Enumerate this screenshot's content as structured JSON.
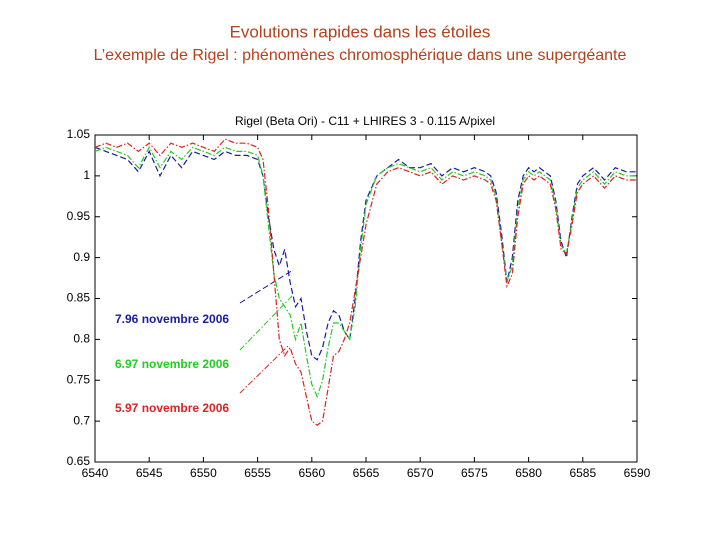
{
  "slide_title": "Evolutions rapides dans les étoiles",
  "slide_subtitle": "L’exemple de Rigel : phénomènes chromosphérique dans une supergéante",
  "chart_data": {
    "type": "line",
    "title": "Rigel (Beta Ori) - C11 + LHIRES 3 - 0.115 A/pixel",
    "x": [
      6540,
      6541,
      6542,
      6543,
      6544,
      6545,
      6546,
      6547,
      6548,
      6549,
      6550,
      6551,
      6552,
      6553,
      6554,
      6555,
      6555.5,
      6556,
      6556.5,
      6557,
      6557.5,
      6558,
      6558.5,
      6559,
      6559.5,
      6560,
      6560.5,
      6561,
      6561.5,
      6562,
      6562.5,
      6563,
      6563.5,
      6564,
      6564.5,
      6565,
      6566,
      6567,
      6568,
      6569,
      6570,
      6571,
      6572,
      6573,
      6574,
      6575,
      6576,
      6576.5,
      6577,
      6577.5,
      6578,
      6578.5,
      6579,
      6579.5,
      6580,
      6580.5,
      6581,
      6581.5,
      6582,
      6582.5,
      6583,
      6583.5,
      6584,
      6584.5,
      6585,
      6586,
      6587,
      6588,
      6589,
      6590
    ],
    "series": [
      {
        "name": "7.96 novembre 2006",
        "color": "#1a1aa6",
        "linestyle": "dashed",
        "values": [
          1.035,
          1.03,
          1.025,
          1.02,
          1.005,
          1.03,
          1.0,
          1.025,
          1.01,
          1.03,
          1.025,
          1.02,
          1.03,
          1.025,
          1.025,
          1.02,
          1.0,
          0.95,
          0.91,
          0.89,
          0.91,
          0.87,
          0.84,
          0.85,
          0.81,
          0.78,
          0.775,
          0.79,
          0.82,
          0.835,
          0.83,
          0.81,
          0.8,
          0.85,
          0.92,
          0.97,
          1.0,
          1.01,
          1.02,
          1.01,
          1.01,
          1.015,
          1.0,
          1.01,
          1.005,
          1.01,
          1.005,
          1.0,
          0.98,
          0.93,
          0.87,
          0.9,
          0.97,
          1.0,
          1.01,
          1.005,
          1.01,
          1.005,
          1.0,
          0.97,
          0.92,
          0.9,
          0.95,
          0.99,
          1.0,
          1.01,
          0.995,
          1.01,
          1.005,
          1.005
        ]
      },
      {
        "name": "6.97 novembre 2006",
        "color": "#22cc22",
        "linestyle": "dashdot",
        "values": [
          1.03,
          1.035,
          1.03,
          1.025,
          1.01,
          1.035,
          1.01,
          1.03,
          1.02,
          1.035,
          1.03,
          1.025,
          1.035,
          1.03,
          1.03,
          1.025,
          1.0,
          0.94,
          0.88,
          0.85,
          0.84,
          0.83,
          0.8,
          0.82,
          0.78,
          0.745,
          0.73,
          0.75,
          0.79,
          0.82,
          0.82,
          0.81,
          0.8,
          0.84,
          0.91,
          0.965,
          1.0,
          1.01,
          1.015,
          1.01,
          1.005,
          1.01,
          0.995,
          1.005,
          1.0,
          1.005,
          1.0,
          0.995,
          0.975,
          0.92,
          0.87,
          0.89,
          0.96,
          0.995,
          1.005,
          1.0,
          1.005,
          1.0,
          0.995,
          0.965,
          0.915,
          0.905,
          0.945,
          0.985,
          0.995,
          1.005,
          0.99,
          1.005,
          1.0,
          1.0
        ]
      },
      {
        "name": "5.97 novembre 2006",
        "color": "#dd2222",
        "linestyle": "dashdot",
        "values": [
          1.035,
          1.04,
          1.035,
          1.04,
          1.03,
          1.04,
          1.025,
          1.04,
          1.035,
          1.04,
          1.035,
          1.03,
          1.045,
          1.04,
          1.04,
          1.035,
          1.02,
          0.96,
          0.88,
          0.8,
          0.78,
          0.79,
          0.77,
          0.76,
          0.73,
          0.7,
          0.695,
          0.7,
          0.74,
          0.78,
          0.785,
          0.8,
          0.82,
          0.86,
          0.9,
          0.94,
          0.99,
          1.005,
          1.01,
          1.005,
          1.0,
          1.005,
          0.99,
          1.0,
          0.995,
          1.0,
          0.995,
          0.99,
          0.97,
          0.92,
          0.865,
          0.88,
          0.95,
          0.99,
          1.0,
          0.995,
          1.0,
          0.995,
          0.99,
          0.96,
          0.91,
          0.905,
          0.94,
          0.98,
          0.99,
          1.0,
          0.985,
          1.0,
          0.995,
          0.995
        ]
      }
    ],
    "xlim": [
      6540,
      6590
    ],
    "xticks": [
      6540,
      6545,
      6550,
      6555,
      6560,
      6565,
      6570,
      6575,
      6580,
      6585,
      6590
    ],
    "ylim": [
      0.65,
      1.05
    ],
    "yticks": [
      0.65,
      0.7,
      0.75,
      0.8,
      0.85,
      0.9,
      0.95,
      1,
      1.05
    ]
  }
}
